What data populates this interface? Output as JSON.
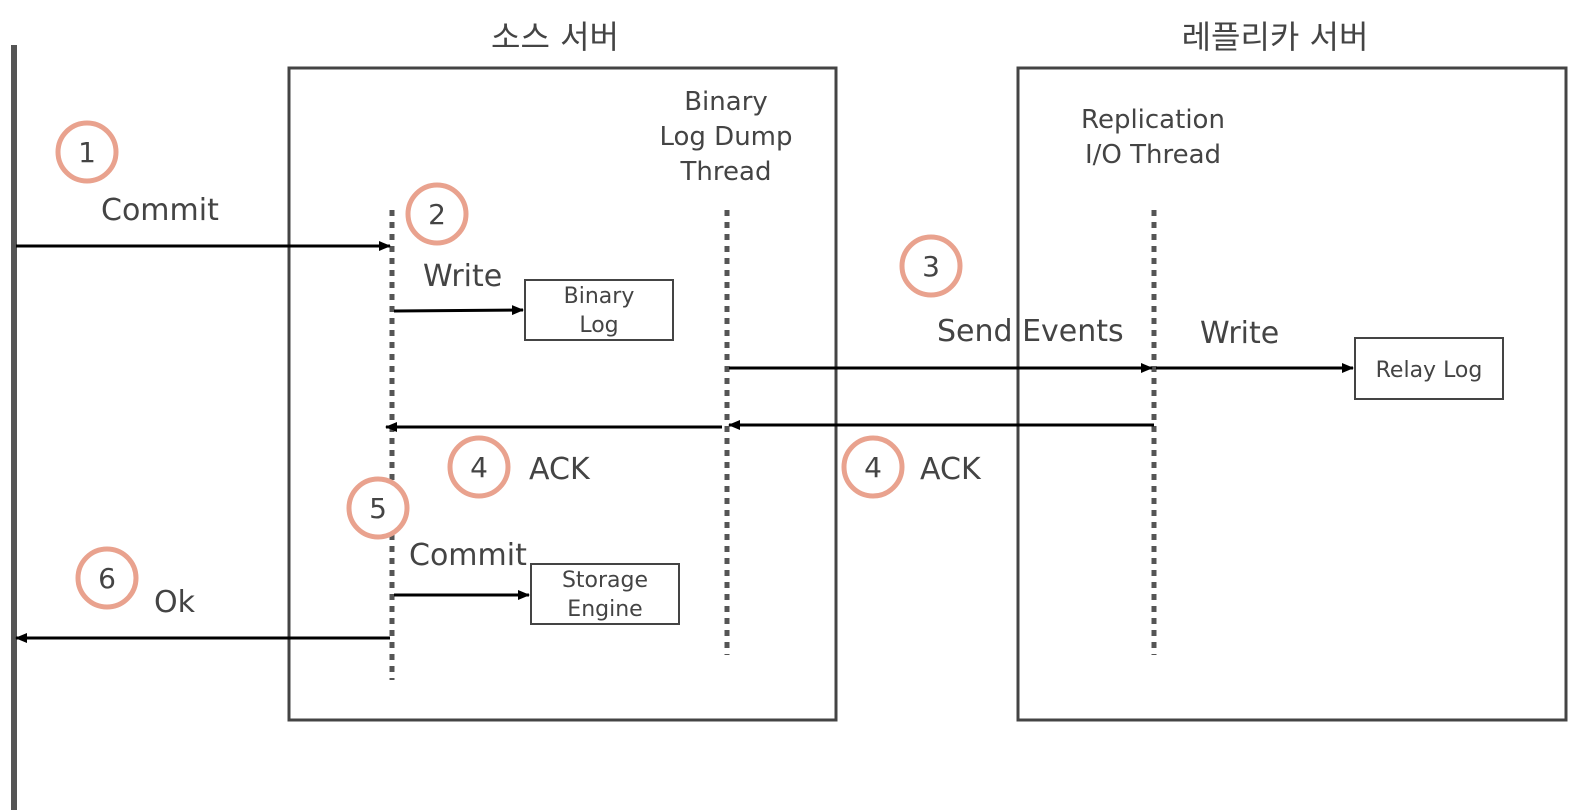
{
  "source_server": {
    "title": "소스 서버",
    "binlog_dump_thread": [
      "Binary",
      "Log Dump",
      "Thread"
    ],
    "binary_log": [
      "Binary",
      "Log"
    ],
    "storage_engine": [
      "Storage",
      "Engine"
    ]
  },
  "replica_server": {
    "title": "레플리카 서버",
    "io_thread": [
      "Replication",
      "I/O Thread"
    ],
    "relay_log": "Relay Log"
  },
  "steps": {
    "s1": {
      "num": "1",
      "label": "Commit"
    },
    "s2": {
      "num": "2",
      "label": "Write"
    },
    "s3": {
      "num": "3",
      "label": "Send Events",
      "label2": "Write"
    },
    "s4a": {
      "num": "4",
      "label": "ACK"
    },
    "s4b": {
      "num": "4",
      "label": "ACK"
    },
    "s5": {
      "num": "5",
      "label": "Commit"
    },
    "s6": {
      "num": "6",
      "label": "Ok"
    }
  },
  "colors": {
    "step_circle": "#e9a28e",
    "line": "#444444",
    "arrow": "#000000"
  }
}
